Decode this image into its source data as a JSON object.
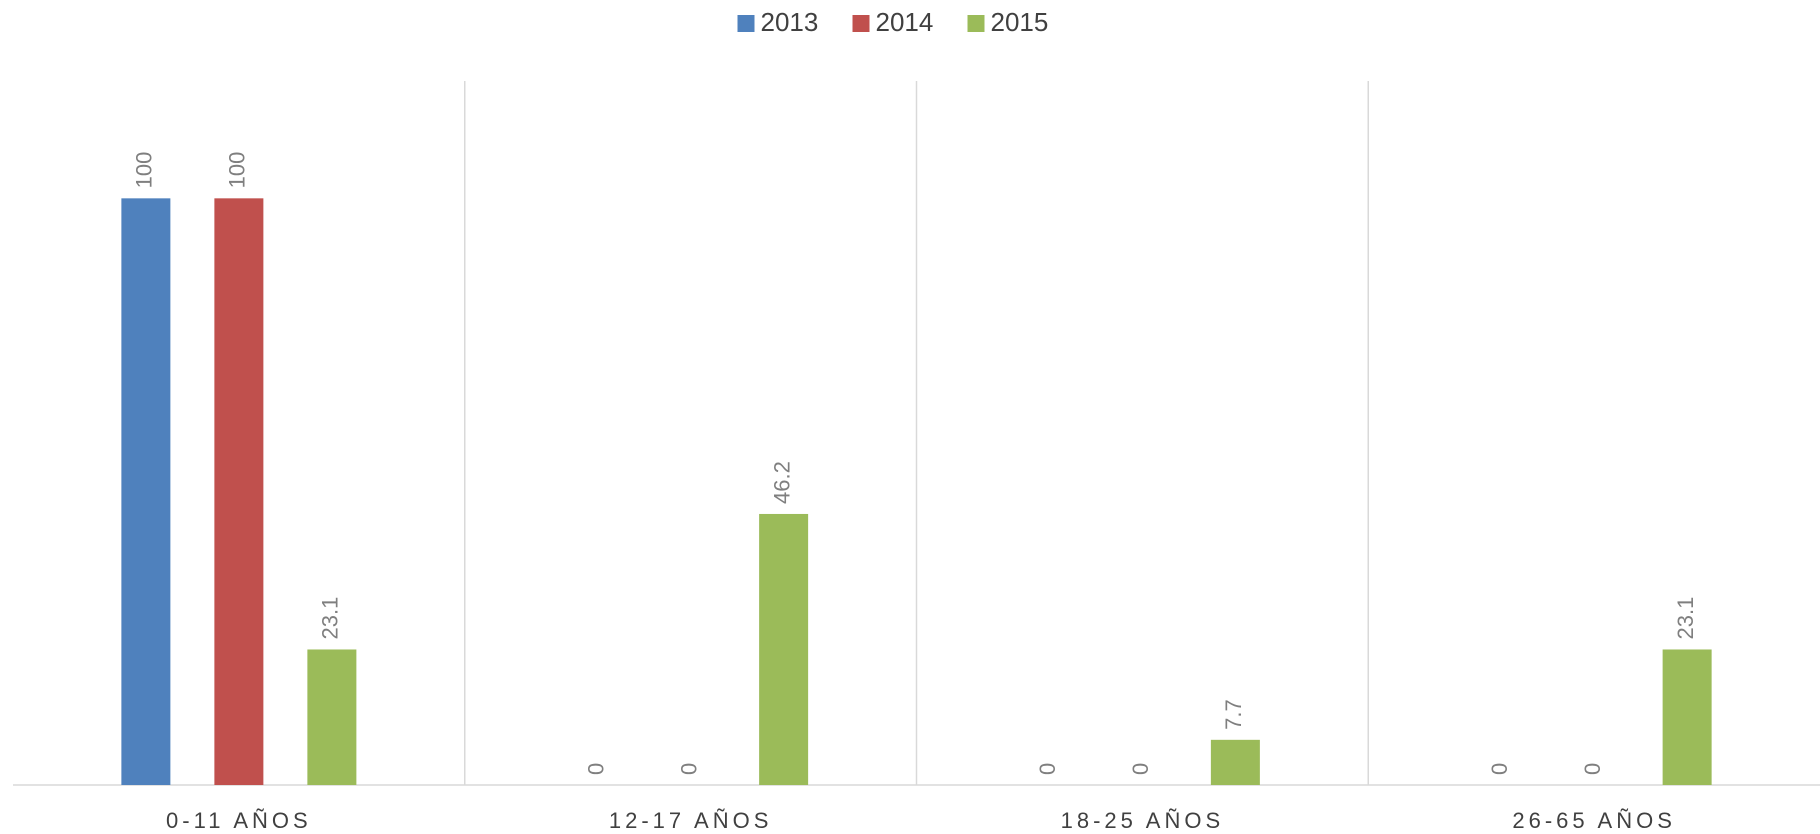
{
  "chart_data": {
    "type": "bar",
    "categories": [
      "0-11 AÑOS",
      "12-17 AÑOS",
      "18-25 AÑOS",
      "26-65 AÑOS"
    ],
    "series": [
      {
        "name": "2013",
        "color": "#4f81bd",
        "values": [
          100,
          0,
          0,
          0
        ]
      },
      {
        "name": "2014",
        "color": "#c0504d",
        "values": [
          100,
          0,
          0,
          0
        ]
      },
      {
        "name": "2015",
        "color": "#9bbb59",
        "values": [
          23.1,
          46.2,
          7.7,
          23.1
        ]
      }
    ],
    "ylim": [
      0,
      120
    ],
    "legend": "top"
  }
}
